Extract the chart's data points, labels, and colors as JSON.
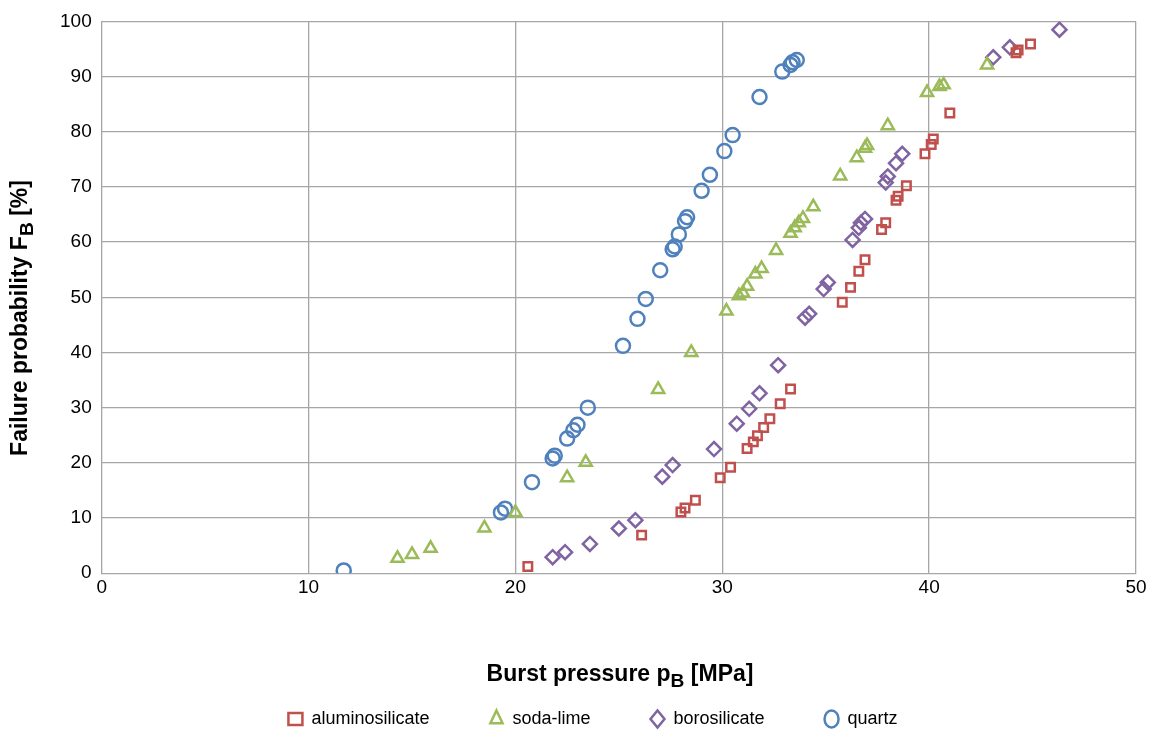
{
  "chart_data": {
    "type": "scatter",
    "xlabel": "Burst pressure p$_{B}$ [MPa]",
    "ylabel": "Failure probability F$_{B}$ [%]",
    "xlim": [
      0,
      50
    ],
    "xticks": [
      0,
      10,
      20,
      30,
      40,
      50
    ],
    "ylim": [
      0,
      100
    ],
    "yticks": [
      0,
      10,
      20,
      30,
      40,
      50,
      60,
      70,
      80,
      90,
      100
    ],
    "grid": true,
    "legend": "bottom",
    "series": [
      {
        "name": "aluminosilicate",
        "color": "#c0504d",
        "marker": "square",
        "x": [
          20.6,
          26.1,
          28.0,
          28.2,
          28.7,
          29.9,
          30.4,
          31.2,
          31.5,
          31.7,
          32.0,
          32.3,
          32.8,
          33.3,
          35.8,
          36.2,
          36.6,
          36.9,
          37.7,
          37.9,
          38.4,
          38.5,
          38.9,
          39.8,
          40.1,
          40.2,
          41.0,
          44.2,
          44.3,
          44.9
        ],
        "values": [
          1.2,
          6.9,
          11.1,
          11.8,
          13.2,
          17.3,
          19.2,
          22.6,
          23.8,
          24.9,
          26.4,
          28.0,
          30.7,
          33.4,
          49.1,
          51.8,
          54.7,
          56.8,
          62.3,
          63.5,
          67.6,
          68.3,
          70.2,
          76.0,
          77.7,
          78.7,
          83.4,
          94.3,
          94.8,
          95.9
        ]
      },
      {
        "name": "soda-lime",
        "color": "#9bbb59",
        "marker": "triangle",
        "x": [
          14.3,
          15.0,
          15.9,
          18.5,
          20.0,
          22.5,
          23.4,
          26.9,
          28.5,
          30.2,
          30.8,
          31.0,
          31.2,
          31.6,
          31.9,
          32.6,
          33.3,
          33.5,
          33.7,
          33.9,
          34.4,
          35.7,
          36.5,
          36.9,
          37.0,
          38.0,
          39.9,
          40.5,
          40.7,
          42.8
        ],
        "values": [
          2.7,
          3.4,
          4.5,
          8.2,
          11.0,
          17.3,
          20.1,
          33.3,
          40.0,
          47.5,
          50.3,
          50.8,
          52.0,
          54.2,
          55.2,
          58.5,
          61.6,
          62.6,
          63.5,
          64.3,
          66.4,
          72.0,
          75.3,
          77.0,
          77.5,
          81.1,
          87.1,
          88.2,
          88.5,
          92.1
        ]
      },
      {
        "name": "borosilicate",
        "color": "#8064a2",
        "marker": "diamond",
        "x": [
          21.8,
          22.4,
          23.6,
          25.0,
          25.8,
          27.1,
          27.6,
          29.6,
          30.7,
          31.3,
          31.8,
          32.7,
          34.0,
          34.2,
          34.9,
          35.1,
          36.3,
          36.6,
          36.7,
          36.9,
          37.9,
          38.0,
          38.4,
          38.7,
          43.1,
          43.9,
          46.3
        ],
        "values": [
          2.9,
          3.8,
          5.3,
          8.1,
          9.6,
          17.5,
          19.6,
          22.5,
          27.1,
          29.8,
          32.6,
          37.7,
          46.3,
          47.0,
          51.5,
          52.7,
          60.4,
          62.6,
          63.5,
          64.2,
          70.8,
          71.9,
          74.3,
          76.0,
          93.5,
          95.3,
          98.5
        ]
      },
      {
        "name": "quartz",
        "color": "#4f81bd",
        "marker": "circle",
        "x": [
          11.7,
          19.3,
          19.5,
          20.8,
          21.8,
          21.9,
          22.5,
          22.8,
          23.0,
          23.5,
          25.2,
          25.9,
          26.3,
          27.0,
          27.6,
          27.7,
          27.9,
          28.2,
          28.3,
          29.0,
          29.4,
          30.1,
          30.5,
          31.8,
          32.9,
          33.3,
          33.4,
          33.6
        ],
        "values": [
          0.5,
          11.0,
          11.7,
          16.5,
          20.8,
          21.3,
          24.4,
          25.9,
          26.9,
          30.0,
          41.2,
          46.1,
          49.7,
          54.9,
          58.7,
          59.2,
          61.4,
          63.8,
          64.5,
          69.3,
          72.2,
          76.5,
          79.4,
          86.3,
          90.9,
          92.1,
          92.6,
          93.0
        ]
      }
    ]
  }
}
